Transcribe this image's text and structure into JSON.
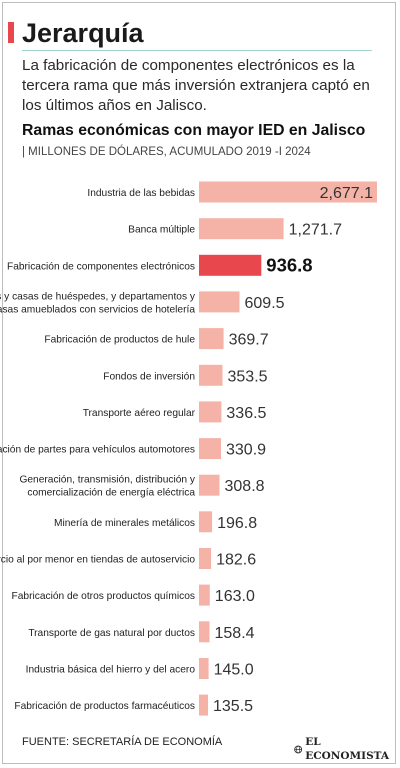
{
  "header": {
    "section": "Jerarquía",
    "lead": "La fabricación de componentes electrónicos es la tercera rama que más inversión extranjera captó en los últimos años en Jalisco.",
    "chart_title": "Ramas económicas con mayor IED en Jalisco",
    "chart_subtitle": "| MILLONES DE DÓLARES, ACUMULADO 2019 -I 2024"
  },
  "footer": {
    "source": "FUENTE: SECRETARÍA DE ECONOMÍA",
    "brand": "EL ECONOMISTA",
    "brand_icon": "globe-icon"
  },
  "colors": {
    "accent": "#e8484d",
    "bar": "#f5b3a8",
    "highlight": "#e8484d",
    "text": "#1a1a1a",
    "rule": "#9fd4d1"
  },
  "chart_data": {
    "type": "bar",
    "orientation": "horizontal",
    "title": "Ramas económicas con mayor IED en Jalisco",
    "subtitle": "MILLONES DE DÓLARES, ACUMULADO 2019 -I 2024",
    "categories": [
      [
        "Industria de las bebidas"
      ],
      [
        "Banca múltiple"
      ],
      [
        "Fabricación de componentes electrónicos"
      ],
      [
        "Pensiones y casas de huéspedes, y departamentos y",
        "casas amueblados con servicios de hotelería"
      ],
      [
        "Fabricación de productos de hule"
      ],
      [
        "Fondos de inversión"
      ],
      [
        "Transporte aéreo regular"
      ],
      [
        "Fabricación de partes para vehículos automotores"
      ],
      [
        "Generación, transmisión, distribución y",
        "comercialización de energía eléctrica"
      ],
      [
        "Minería de minerales metálicos"
      ],
      [
        "Comercio al por menor en tiendas de autoservicio"
      ],
      [
        "Fabricación de otros productos químicos"
      ],
      [
        "Transporte de gas natural por ductos"
      ],
      [
        "Industria básica del hierro y del acero"
      ],
      [
        "Fabricación de productos farmacéuticos"
      ]
    ],
    "values": [
      2677.1,
      1271.7,
      936.8,
      609.5,
      369.7,
      353.5,
      336.5,
      330.9,
      308.8,
      196.8,
      182.6,
      163.0,
      158.4,
      145.0,
      135.5
    ],
    "value_labels": [
      "2,677.1",
      "1,271.7",
      "936.8",
      "609.5",
      "369.7",
      "353.5",
      "336.5",
      "330.9",
      "308.8",
      "196.8",
      "182.6",
      "163.0",
      "158.4",
      "145.0",
      "135.5"
    ],
    "highlight_index": 2,
    "xlim": [
      0,
      2677.1
    ],
    "grid": false,
    "legend": "none"
  }
}
